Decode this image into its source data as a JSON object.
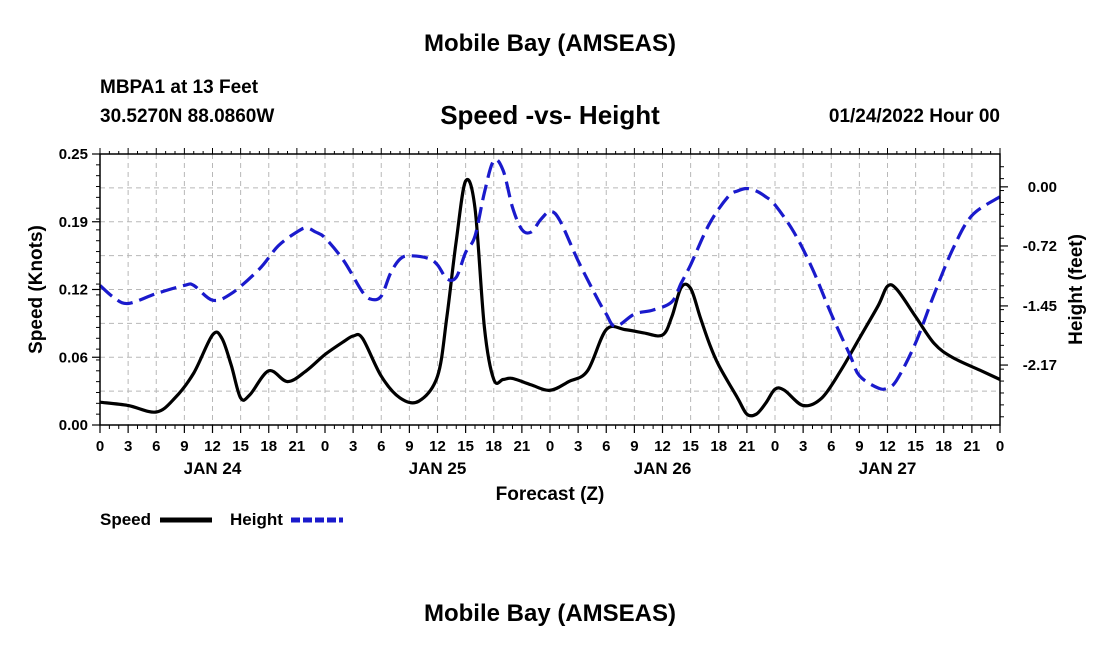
{
  "header": {
    "title": "Mobile Bay (AMSEAS)",
    "station": "MBPA1 at 13 Feet",
    "coordinates": "30.5270N  88.0860W",
    "subtitle": "Speed -vs- Height",
    "timestamp": "01/24/2022 Hour 00"
  },
  "footer": {
    "title": "Mobile Bay (AMSEAS)"
  },
  "legend": {
    "speed_label": "Speed",
    "height_label": "Height"
  },
  "chart_data": {
    "type": "line",
    "title": "Speed -vs- Height",
    "xlabel": "Forecast (Z)",
    "ylabel_left": "Speed (Knots)",
    "ylabel_right": "Height (feet)",
    "x_range_hours": [
      0,
      96
    ],
    "x_ticks": [
      {
        "h": 0,
        "label": "0"
      },
      {
        "h": 3,
        "label": "3"
      },
      {
        "h": 6,
        "label": "6"
      },
      {
        "h": 9,
        "label": "9"
      },
      {
        "h": 12,
        "label": "12"
      },
      {
        "h": 15,
        "label": "15"
      },
      {
        "h": 18,
        "label": "18"
      },
      {
        "h": 21,
        "label": "21"
      },
      {
        "h": 24,
        "label": "0"
      },
      {
        "h": 27,
        "label": "3"
      },
      {
        "h": 30,
        "label": "6"
      },
      {
        "h": 33,
        "label": "9"
      },
      {
        "h": 36,
        "label": "12"
      },
      {
        "h": 39,
        "label": "15"
      },
      {
        "h": 42,
        "label": "18"
      },
      {
        "h": 45,
        "label": "21"
      },
      {
        "h": 48,
        "label": "0"
      },
      {
        "h": 51,
        "label": "3"
      },
      {
        "h": 54,
        "label": "6"
      },
      {
        "h": 57,
        "label": "9"
      },
      {
        "h": 60,
        "label": "12"
      },
      {
        "h": 63,
        "label": "15"
      },
      {
        "h": 66,
        "label": "18"
      },
      {
        "h": 69,
        "label": "21"
      },
      {
        "h": 72,
        "label": "0"
      },
      {
        "h": 75,
        "label": "3"
      },
      {
        "h": 78,
        "label": "6"
      },
      {
        "h": 81,
        "label": "9"
      },
      {
        "h": 84,
        "label": "12"
      },
      {
        "h": 87,
        "label": "15"
      },
      {
        "h": 90,
        "label": "18"
      },
      {
        "h": 93,
        "label": "21"
      },
      {
        "h": 96,
        "label": "0"
      }
    ],
    "day_labels": [
      {
        "h": 12,
        "label": "JAN 24"
      },
      {
        "h": 36,
        "label": "JAN 25"
      },
      {
        "h": 60,
        "label": "JAN 26"
      },
      {
        "h": 84,
        "label": "JAN 27"
      }
    ],
    "y_left": {
      "range": [
        0,
        0.25
      ],
      "ticks": [
        {
          "v": 0,
          "label": "0.00"
        },
        {
          "v": 0.0625,
          "label": "0.06"
        },
        {
          "v": 0.125,
          "label": "0.12"
        },
        {
          "v": 0.1875,
          "label": "0.19"
        },
        {
          "v": 0.25,
          "label": "0.25"
        }
      ]
    },
    "y_right": {
      "range": [
        -2.9,
        0.4
      ],
      "ticks": [
        {
          "v": 0,
          "label": "0.00"
        },
        {
          "v": -0.72,
          "label": "-0.72"
        },
        {
          "v": -1.45,
          "label": "-1.45"
        },
        {
          "v": -2.17,
          "label": "-2.17"
        }
      ]
    },
    "series": [
      {
        "name": "Speed",
        "axis": "left",
        "color": "#000000",
        "dash": "solid",
        "x": [
          0,
          3,
          6,
          8,
          10,
          12,
          13,
          14,
          15,
          16,
          18,
          20,
          22,
          24,
          26,
          27,
          28,
          30,
          32,
          34,
          36,
          37,
          38,
          39,
          40,
          41,
          42,
          43,
          44,
          46,
          48,
          50,
          52,
          54,
          56,
          58,
          60,
          61,
          62,
          63,
          64,
          65,
          66,
          68,
          69,
          70,
          71,
          72,
          73,
          75,
          77,
          79,
          81,
          83,
          84,
          85,
          87,
          89,
          91,
          94,
          96
        ],
        "values": [
          0.021,
          0.018,
          0.012,
          0.025,
          0.048,
          0.083,
          0.08,
          0.055,
          0.025,
          0.028,
          0.05,
          0.04,
          0.05,
          0.065,
          0.077,
          0.082,
          0.08,
          0.045,
          0.025,
          0.022,
          0.045,
          0.1,
          0.17,
          0.225,
          0.2,
          0.09,
          0.042,
          0.042,
          0.043,
          0.037,
          0.032,
          0.04,
          0.05,
          0.088,
          0.088,
          0.085,
          0.083,
          0.1,
          0.127,
          0.126,
          0.1,
          0.075,
          0.055,
          0.025,
          0.01,
          0.01,
          0.02,
          0.033,
          0.032,
          0.018,
          0.025,
          0.05,
          0.08,
          0.11,
          0.128,
          0.125,
          0.1,
          0.075,
          0.062,
          0.05,
          0.042
        ]
      },
      {
        "name": "Height",
        "axis": "right",
        "color": "#1a1acc",
        "dash": "dashed",
        "x": [
          0,
          1.5,
          3,
          6,
          9,
          10,
          12,
          14,
          17,
          19,
          21,
          22,
          23,
          24,
          26,
          28,
          29,
          30,
          31,
          32,
          33,
          35,
          36,
          37,
          38,
          39,
          40,
          41,
          42,
          43,
          44,
          45,
          46,
          47,
          48,
          49,
          51,
          53,
          54,
          55,
          57,
          59,
          61,
          62,
          63,
          65,
          67,
          68,
          69,
          70,
          71,
          72,
          74,
          76,
          78,
          80,
          81,
          83,
          84,
          85,
          87,
          89,
          91,
          93,
          96
        ],
        "values": [
          -1.2,
          -1.35,
          -1.42,
          -1.3,
          -1.2,
          -1.2,
          -1.38,
          -1.3,
          -1.0,
          -0.72,
          -0.55,
          -0.5,
          -0.55,
          -0.62,
          -0.9,
          -1.28,
          -1.37,
          -1.33,
          -1.05,
          -0.88,
          -0.84,
          -0.87,
          -0.95,
          -1.12,
          -1.1,
          -0.8,
          -0.6,
          -0.07,
          0.32,
          0.2,
          -0.25,
          -0.52,
          -0.55,
          -0.4,
          -0.3,
          -0.4,
          -0.9,
          -1.35,
          -1.55,
          -1.7,
          -1.55,
          -1.5,
          -1.4,
          -1.17,
          -0.95,
          -0.45,
          -0.12,
          -0.05,
          -0.02,
          -0.05,
          -0.12,
          -0.22,
          -0.55,
          -1.0,
          -1.55,
          -2.05,
          -2.3,
          -2.45,
          -2.45,
          -2.35,
          -1.9,
          -1.3,
          -0.75,
          -0.35,
          -0.12
        ]
      }
    ]
  }
}
